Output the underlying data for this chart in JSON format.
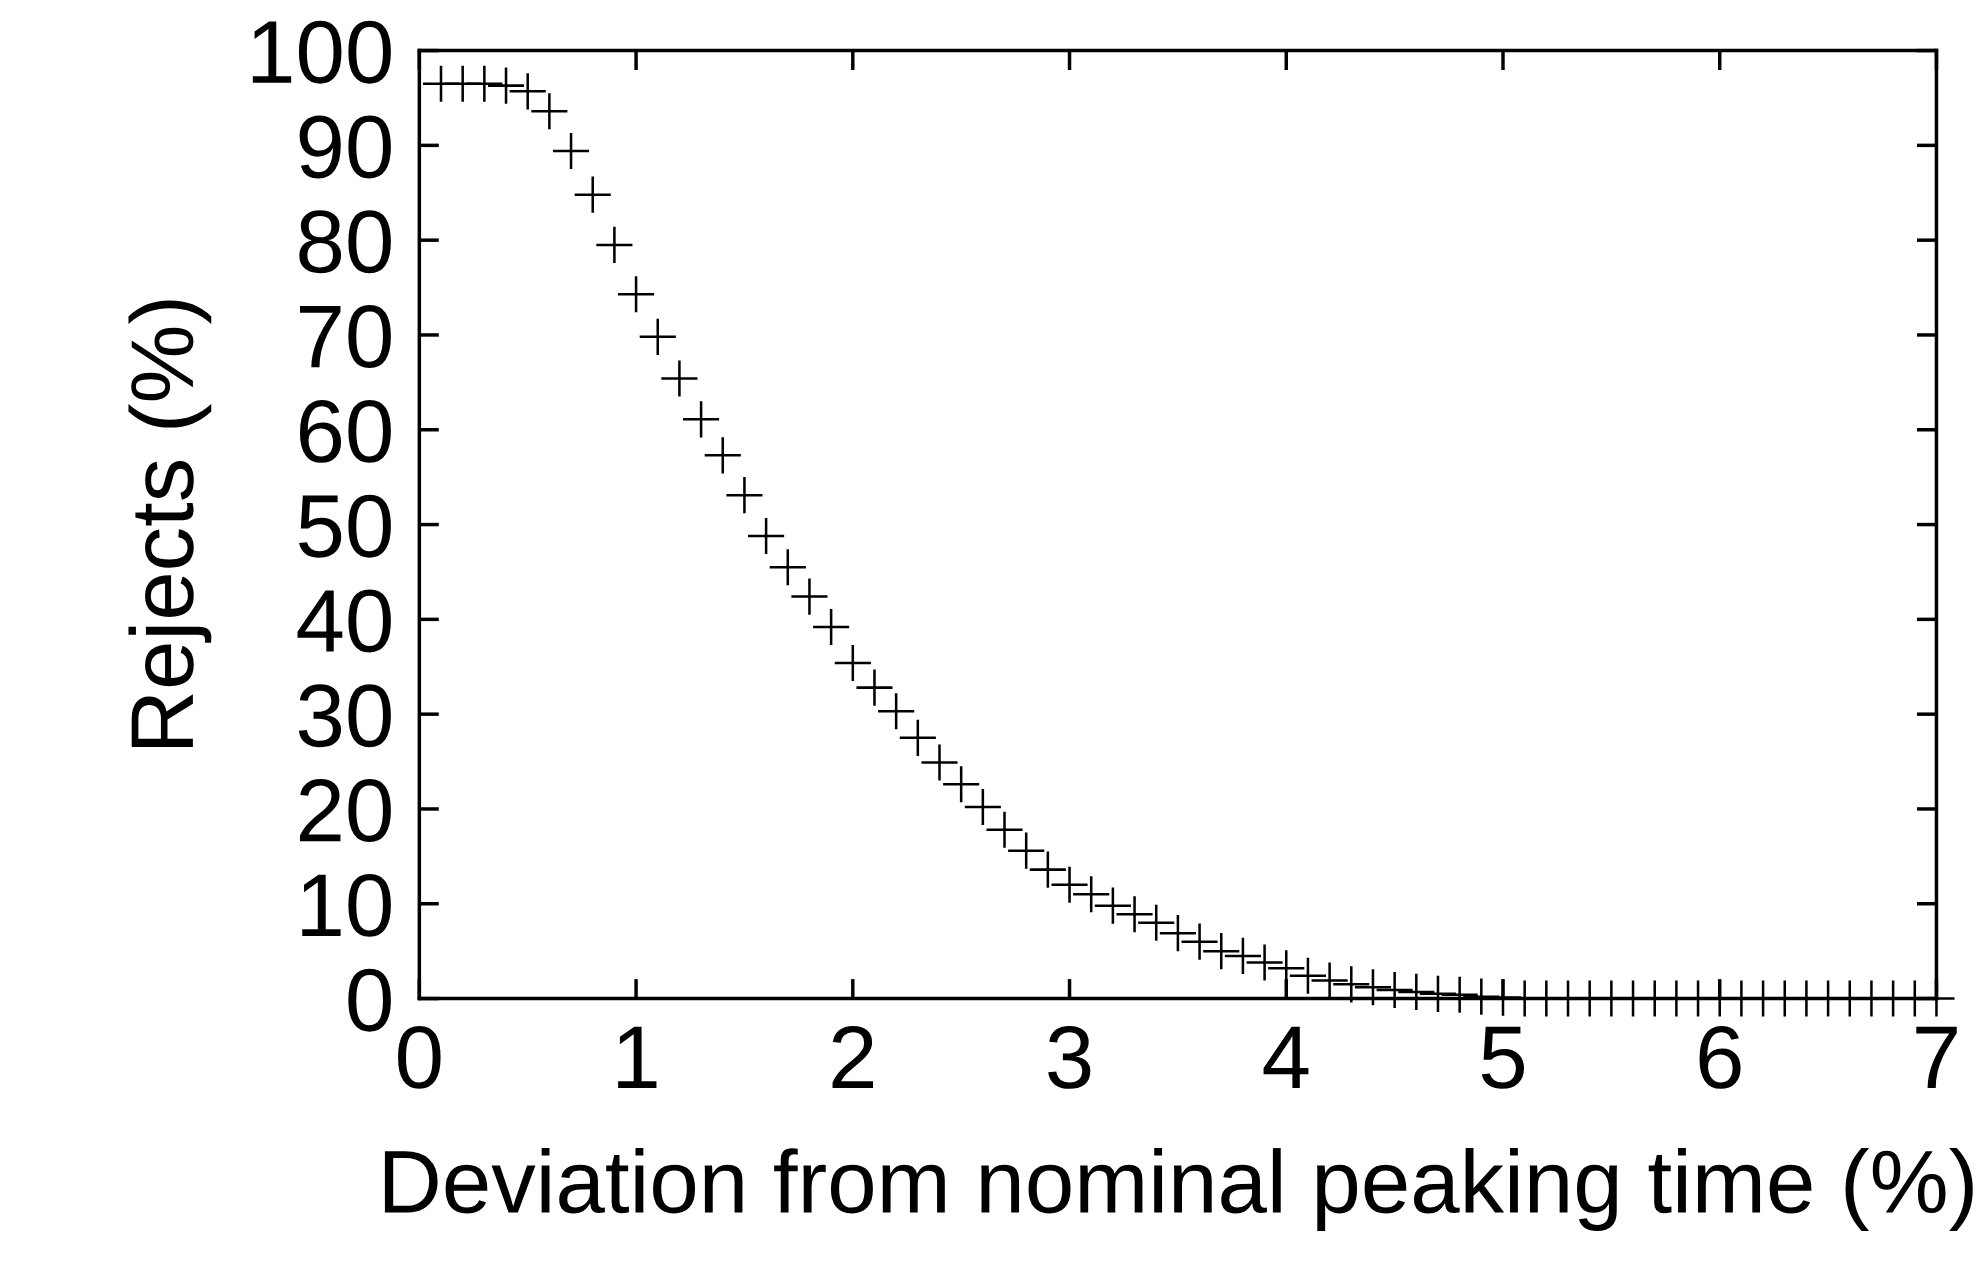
{
  "chart_data": {
    "type": "scatter",
    "xlabel": "Deviation from nominal peaking time (%)",
    "ylabel": "Rejects (%)",
    "xlim": [
      0,
      7
    ],
    "ylim": [
      0,
      100
    ],
    "xticks": [
      0,
      1,
      2,
      3,
      4,
      5,
      6,
      7
    ],
    "yticks": [
      0,
      10,
      20,
      30,
      40,
      50,
      60,
      70,
      80,
      90,
      100
    ],
    "grid": false,
    "marker": "cross",
    "series": [
      {
        "color": "#000000",
        "x": [
          0.1,
          0.2,
          0.3,
          0.4,
          0.5,
          0.6,
          0.7,
          0.8,
          0.9,
          1.0,
          1.1,
          1.2,
          1.3,
          1.4,
          1.5,
          1.6,
          1.7,
          1.8,
          1.9,
          2.0,
          2.1,
          2.2,
          2.3,
          2.4,
          2.5,
          2.6,
          2.7,
          2.8,
          2.9,
          3.0,
          3.1,
          3.2,
          3.3,
          3.4,
          3.5,
          3.6,
          3.7,
          3.8,
          3.9,
          4.0,
          4.1,
          4.2,
          4.3,
          4.4,
          4.5,
          4.6,
          4.7,
          4.8,
          4.9,
          5.0,
          5.1,
          5.2,
          5.3,
          5.4,
          5.5,
          5.6,
          5.7,
          5.8,
          5.9,
          6.0,
          6.1,
          6.2,
          6.3,
          6.4,
          6.5,
          6.6,
          6.7,
          6.8,
          6.9,
          7.0
        ],
        "values": [
          96.5,
          96.5,
          96.5,
          96.3,
          95.7,
          93.6,
          89.4,
          84.8,
          79.5,
          74.3,
          69.8,
          65.4,
          61.1,
          57.3,
          53.1,
          48.8,
          45.5,
          42.4,
          39.2,
          35.4,
          32.8,
          30.3,
          27.5,
          24.9,
          22.6,
          20.2,
          17.8,
          15.6,
          13.6,
          12.0,
          11.0,
          9.8,
          8.9,
          8.0,
          6.9,
          6.0,
          5.0,
          4.5,
          3.8,
          3.2,
          2.4,
          1.9,
          1.5,
          1.2,
          0.9,
          0.7,
          0.5,
          0.4,
          0.2,
          0.1,
          0,
          0,
          0,
          0,
          0,
          0,
          0,
          0,
          0,
          0,
          0,
          0,
          0,
          0,
          0,
          0,
          0,
          0,
          0,
          0
        ]
      }
    ]
  }
}
